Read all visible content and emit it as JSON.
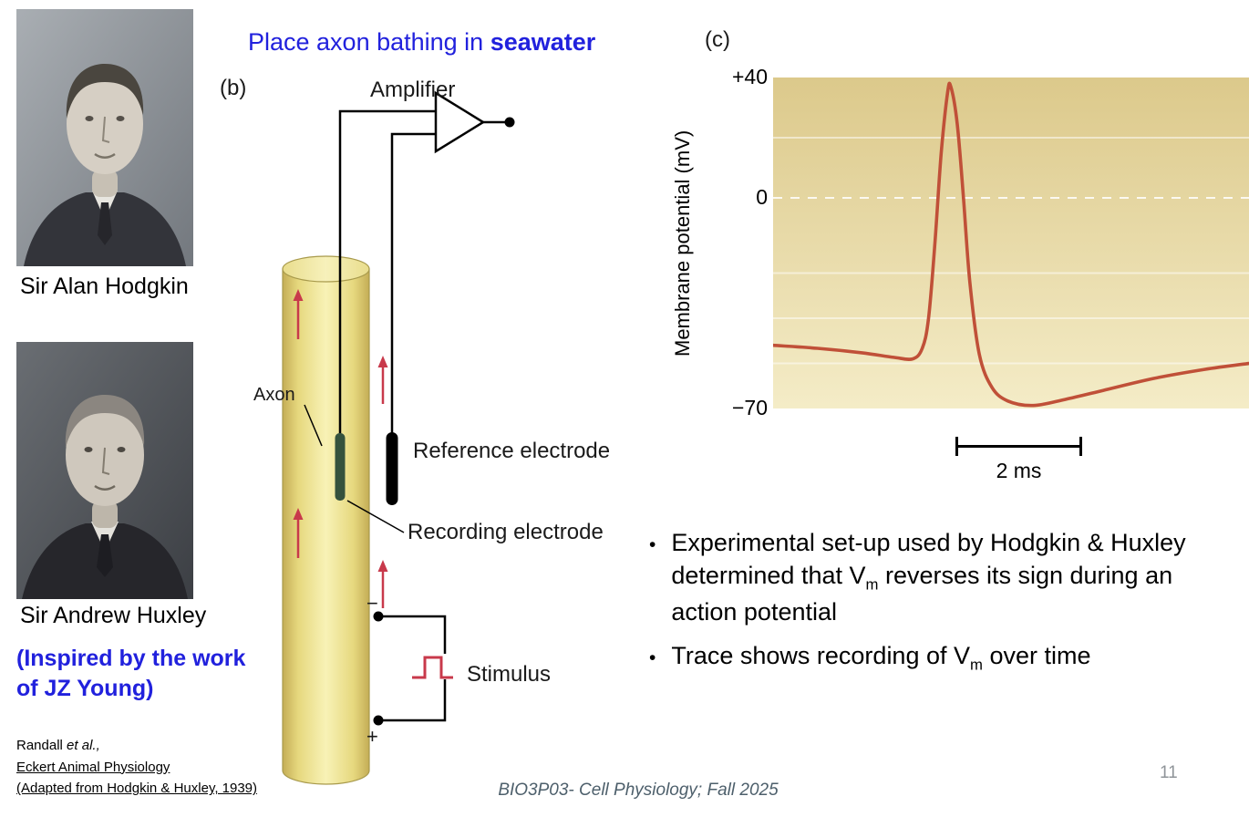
{
  "colors": {
    "blue_text": "#2121dd",
    "trace_red": "#c05038",
    "arrow_red": "#c8394b",
    "electrode_green": "#35523d",
    "chart_bg_top": "#dcc98b",
    "chart_bg_bottom": "#f4ecc7",
    "footer_text": "#4d5f6b",
    "muted_gray": "#8f9499"
  },
  "header": {
    "title_pre": "Place axon bathing in ",
    "title_bold": "seawater"
  },
  "portraits": {
    "hodgkin_caption": "Sir Alan Hodgkin",
    "huxley_caption": "Sir Andrew Huxley",
    "inspired_note": "(Inspired by the work of JZ Young)"
  },
  "diagram": {
    "panel_label": "(b)",
    "amplifier_label": "Amplifier",
    "axon_label": "Axon",
    "reference_electrode_label": "Reference electrode",
    "recording_electrode_label": "Recording electrode",
    "stimulus_label": "Stimulus",
    "minus_terminal": "−",
    "plus_terminal": "+"
  },
  "chart_data": {
    "type": "line",
    "panel_label": "(c)",
    "ylabel": "Membrane potential (mV)",
    "xlabel": "",
    "ylim": [
      -70,
      40
    ],
    "xlim_ms": [
      0,
      7.5
    ],
    "yticks": [
      {
        "mv": 40,
        "label": "+40"
      },
      {
        "mv": 0,
        "label": "0"
      },
      {
        "mv": -70,
        "label": "−70"
      }
    ],
    "gridlines_mv": [
      20,
      -25,
      -40,
      -55
    ],
    "zero_line_dashed": true,
    "scalebar": {
      "ms": 2,
      "label": "2 ms"
    },
    "legend": false,
    "series": [
      {
        "name": "membrane-potential-trace",
        "points_ms_mv": [
          [
            0,
            -49
          ],
          [
            0.7,
            -50
          ],
          [
            1.4,
            -51.5
          ],
          [
            1.9,
            -53
          ],
          [
            2.2,
            -53.5
          ],
          [
            2.35,
            -50
          ],
          [
            2.45,
            -40
          ],
          [
            2.55,
            -15
          ],
          [
            2.65,
            15
          ],
          [
            2.75,
            35
          ],
          [
            2.8,
            37
          ],
          [
            2.9,
            25
          ],
          [
            3.0,
            0
          ],
          [
            3.1,
            -28
          ],
          [
            3.25,
            -52
          ],
          [
            3.45,
            -63
          ],
          [
            3.7,
            -67.5
          ],
          [
            4.1,
            -69
          ],
          [
            4.6,
            -67
          ],
          [
            5.2,
            -64
          ],
          [
            6.0,
            -60
          ],
          [
            6.8,
            -57
          ],
          [
            7.5,
            -55
          ]
        ]
      }
    ]
  },
  "bullets": {
    "glyph": "•",
    "items": [
      {
        "pre": "Experimental set-up used by Hodgkin & Huxley determined that V",
        "sub": "m",
        "post": " reverses its sign during an action potential"
      },
      {
        "pre": "Trace shows recording of V",
        "sub": "m",
        "post": " over time"
      }
    ]
  },
  "citation": {
    "line1_pre": "Randall ",
    "line1_italic": "et al.,",
    "line2_underlined": "Eckert Animal Physiology",
    "line3_underlined": "(Adapted from Hodgkin & Huxley, 1939)"
  },
  "footer": {
    "course": "BIO3P03- Cell Physiology; Fall 2025",
    "page_number": "11"
  }
}
